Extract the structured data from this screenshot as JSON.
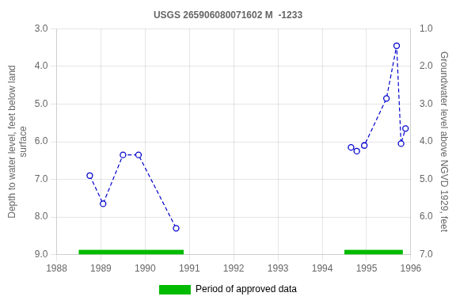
{
  "chart_data": {
    "type": "line",
    "title": "USGS 265906080071602 M  -1233",
    "y_label": "Depth to water level, feet below land\nsurface",
    "y2_label": "Groundwater level above NGVD 1929, feet",
    "xlim": [
      1988,
      1996
    ],
    "xticks": [
      1988,
      1989,
      1990,
      1991,
      1992,
      1993,
      1994,
      1995,
      1996
    ],
    "ylim": [
      9.0,
      3.0
    ],
    "yticks": [
      {
        "value": 3.0,
        "label": "3.0"
      },
      {
        "value": 4.0,
        "label": "4.0"
      },
      {
        "value": 5.0,
        "label": "5.0"
      },
      {
        "value": 6.0,
        "label": "6.0"
      },
      {
        "value": 7.0,
        "label": "7.0"
      },
      {
        "value": 8.0,
        "label": "8.0"
      },
      {
        "value": 9.0,
        "label": "9.0"
      }
    ],
    "y2lim": [
      7.0,
      1.0
    ],
    "y2ticks": [
      {
        "value": 7.0,
        "label": "7.0"
      },
      {
        "value": 6.0,
        "label": "6.0"
      },
      {
        "value": 5.0,
        "label": "5.0"
      },
      {
        "value": 4.0,
        "label": "4.0"
      },
      {
        "value": 3.0,
        "label": "3.0"
      },
      {
        "value": 2.0,
        "label": "2.0"
      },
      {
        "value": 1.0,
        "label": "1.0"
      }
    ],
    "grid": true,
    "legend": "bottom",
    "series": [
      {
        "color": "#0000cc",
        "marker": "circle",
        "line_style": "dashed",
        "x": [
          1988.75,
          1989.05,
          1989.5,
          1989.85,
          1990.7
        ],
        "values": [
          6.9,
          7.65,
          6.35,
          6.35,
          8.3
        ]
      },
      {
        "color": "#0000cc",
        "marker": "circle",
        "line_style": "dashed",
        "x": [
          1994.65,
          1994.78,
          1994.95,
          1995.45,
          1995.68,
          1995.78,
          1995.88
        ],
        "values": [
          6.15,
          6.25,
          6.1,
          4.85,
          3.45,
          6.05,
          5.65
        ]
      }
    ],
    "periods": {
      "name": "Period of approved data",
      "color": "#00bb00",
      "ranges": [
        [
          1988.5,
          1990.87
        ],
        [
          1994.5,
          1995.82
        ]
      ]
    }
  }
}
